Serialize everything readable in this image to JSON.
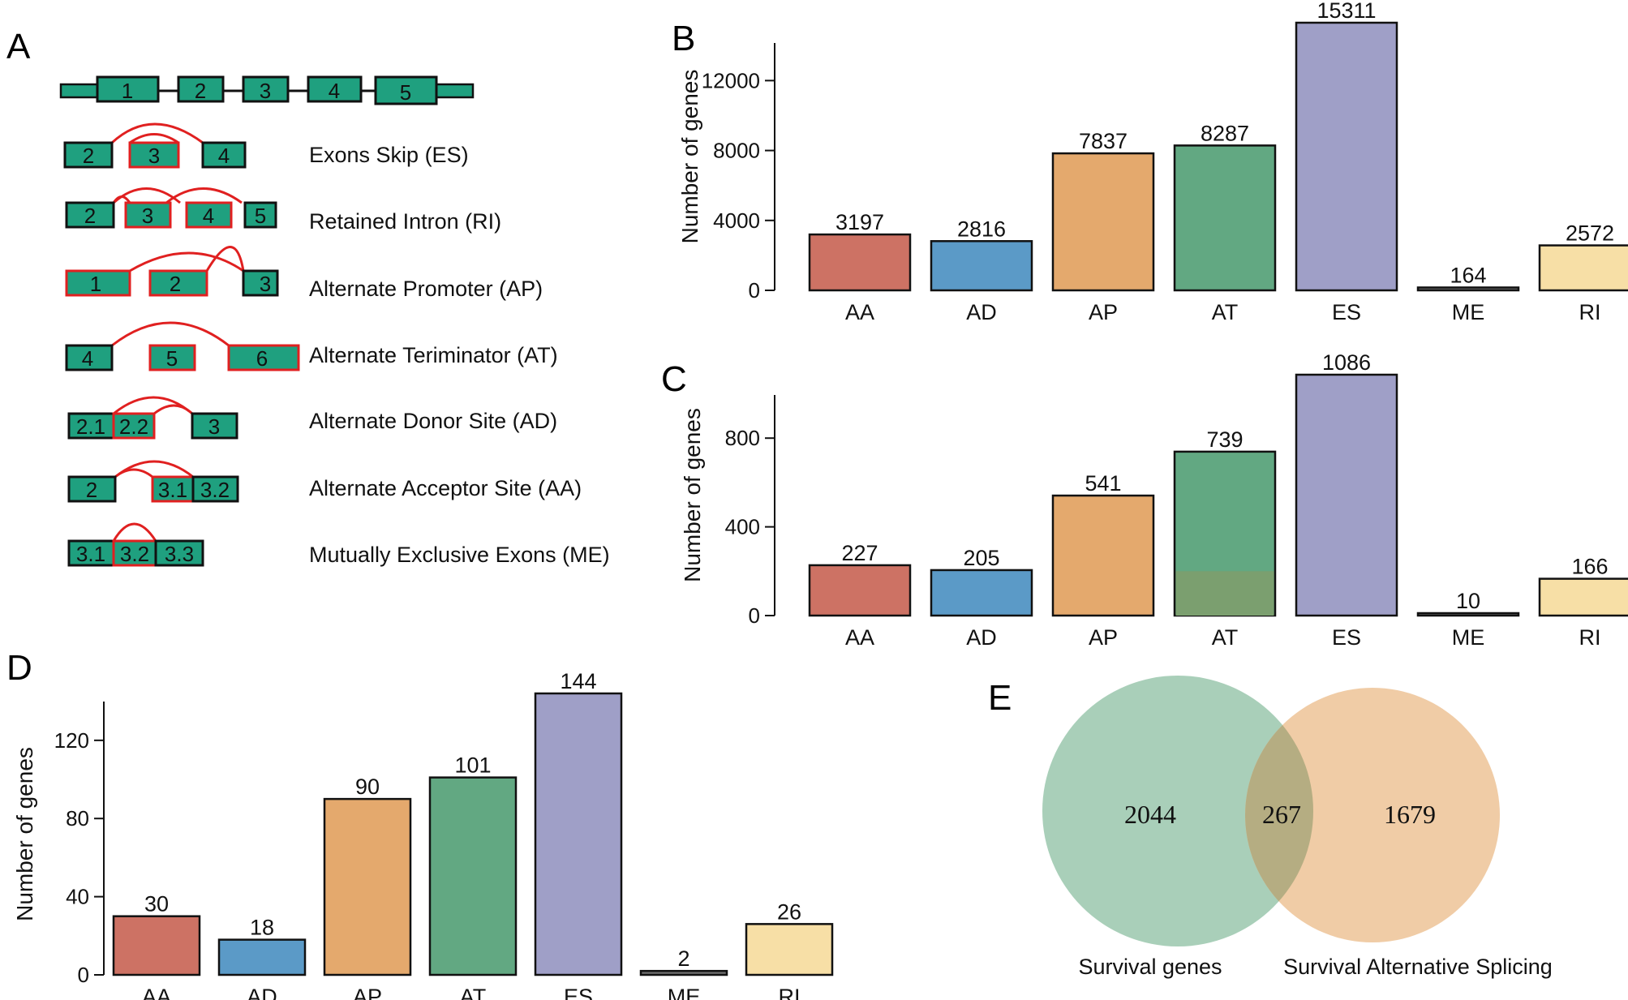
{
  "panels": {
    "A": "A",
    "B": "B",
    "C": "C",
    "D": "D",
    "E": "E"
  },
  "colors": {
    "exon_fill": "#1fa07f",
    "exon_stroke": "#111111",
    "alt_stroke": "#e02020",
    "AA": "#cd7264",
    "AD": "#5b9ac7",
    "AP": "#e4a96d",
    "AT": "#62a882",
    "ES": "#9f9fc7",
    "ME": "#6f6f6f",
    "RI": "#f7dfa6",
    "venn_left": "#a9cfb9",
    "venn_right": "#f0cca6",
    "venn_overlap": "#b5ad82"
  },
  "gene_model": {
    "exons": [
      "1",
      "2",
      "3",
      "4",
      "5"
    ]
  },
  "events": [
    {
      "label": "Exons Skip (ES)",
      "exons": [
        "2",
        "3",
        "4"
      ]
    },
    {
      "label": "Retained Intron (RI)",
      "exons": [
        "2",
        "3",
        "4",
        "5"
      ]
    },
    {
      "label": "Alternate Promoter (AP)",
      "exons": [
        "1",
        "2",
        "3"
      ]
    },
    {
      "label": "Alternate Teriminator (AT)",
      "exons": [
        "4",
        "5",
        "6"
      ]
    },
    {
      "label": "Alternate Donor Site (AD)",
      "exons": [
        "2.1",
        "2.2",
        "3"
      ]
    },
    {
      "label": "Alternate Acceptor Site (AA)",
      "exons": [
        "2",
        "3.1",
        "3.2"
      ]
    },
    {
      "label": "Mutually Exclusive Exons (ME)",
      "exons": [
        "3.1",
        "3.2",
        "3.3"
      ]
    }
  ],
  "chart_data": [
    {
      "panel": "B",
      "type": "bar",
      "categories": [
        "AA",
        "AD",
        "AP",
        "AT",
        "ES",
        "ME",
        "RI"
      ],
      "values": [
        3197,
        2816,
        7837,
        8287,
        15311,
        164,
        2572
      ],
      "ylabel": "Number of genes",
      "yticks": [
        0,
        4000,
        8000,
        12000
      ],
      "ylim": [
        0,
        15311
      ]
    },
    {
      "panel": "C",
      "type": "bar",
      "categories": [
        "AA",
        "AD",
        "AP",
        "AT",
        "ES",
        "ME",
        "RI"
      ],
      "values": [
        227,
        205,
        541,
        739,
        1086,
        10,
        166
      ],
      "ylabel": "Number of genes",
      "yticks": [
        0,
        400,
        800
      ],
      "ylim": [
        0,
        1086
      ]
    },
    {
      "panel": "D",
      "type": "bar",
      "categories": [
        "AA",
        "AD",
        "AP",
        "AT",
        "ES",
        "ME",
        "RI"
      ],
      "values": [
        30,
        18,
        90,
        101,
        144,
        2,
        26
      ],
      "ylabel": "Number of genes",
      "yticks": [
        0,
        40,
        80,
        120
      ],
      "ylim": [
        0,
        144
      ]
    },
    {
      "panel": "E",
      "type": "venn",
      "sets": [
        {
          "name": "Survival genes",
          "only": 2044
        },
        {
          "name": "Survival Alternative Splicing",
          "only": 1679
        }
      ],
      "overlap": 267
    }
  ]
}
